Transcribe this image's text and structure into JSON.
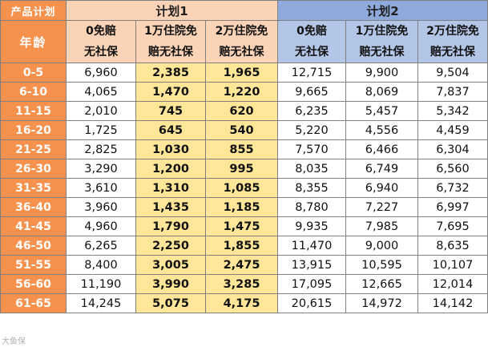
{
  "header": {
    "corner_label": "产品计划",
    "age_label": "年龄",
    "plan1_title": "计划1",
    "plan2_title": "计划2",
    "columns": [
      {
        "line1": "0免赔",
        "line2": "无社保"
      },
      {
        "line1": "1万住院免",
        "line2": "赔无社保"
      },
      {
        "line1": "2万住院免",
        "line2": "赔无社保"
      },
      {
        "line1": "0免赔",
        "line2": "无社保"
      },
      {
        "line1": "1万住院免",
        "line2": "赔无社保"
      },
      {
        "line1": "2万住院免",
        "line2": "赔无社保"
      }
    ]
  },
  "colors": {
    "orange": "#f6924d",
    "peach": "#fbd3b6",
    "blue_title": "#8ea9db",
    "blue_light": "#b4c6e7",
    "yellow_highlight": "#ffe699"
  },
  "rows": [
    {
      "age": "0-5",
      "values": [
        "6,960",
        "2,385",
        "1,965",
        "12,715",
        "9,900",
        "9,504"
      ]
    },
    {
      "age": "6-10",
      "values": [
        "4,065",
        "1,470",
        "1,220",
        "9,665",
        "8,069",
        "7,837"
      ]
    },
    {
      "age": "11-15",
      "values": [
        "2,010",
        "745",
        "620",
        "6,235",
        "5,457",
        "5,342"
      ]
    },
    {
      "age": "16-20",
      "values": [
        "1,725",
        "645",
        "540",
        "5,220",
        "4,556",
        "4,459"
      ]
    },
    {
      "age": "21-25",
      "values": [
        "2,825",
        "1,030",
        "855",
        "7,570",
        "6,466",
        "6,304"
      ]
    },
    {
      "age": "26-30",
      "values": [
        "3,290",
        "1,200",
        "995",
        "8,035",
        "6,749",
        "6,560"
      ]
    },
    {
      "age": "31-35",
      "values": [
        "3,610",
        "1,310",
        "1,085",
        "8,355",
        "6,940",
        "6,732"
      ]
    },
    {
      "age": "36-40",
      "values": [
        "3,960",
        "1,435",
        "1,185",
        "8,780",
        "7,227",
        "6,997"
      ]
    },
    {
      "age": "41-45",
      "values": [
        "4,960",
        "1,790",
        "1,475",
        "9,935",
        "7,985",
        "7,695"
      ]
    },
    {
      "age": "46-50",
      "values": [
        "6,265",
        "2,250",
        "1,855",
        "11,470",
        "9,000",
        "8,635"
      ]
    },
    {
      "age": "51-55",
      "values": [
        "8,400",
        "3,005",
        "2,475",
        "13,915",
        "10,595",
        "10,107"
      ]
    },
    {
      "age": "56-60",
      "values": [
        "11,190",
        "3,990",
        "3,285",
        "17,095",
        "12,665",
        "12,014"
      ]
    },
    {
      "age": "61-65",
      "values": [
        "14,245",
        "5,075",
        "4,175",
        "20,615",
        "14,972",
        "14,142"
      ]
    }
  ],
  "watermark": "大鱼保"
}
